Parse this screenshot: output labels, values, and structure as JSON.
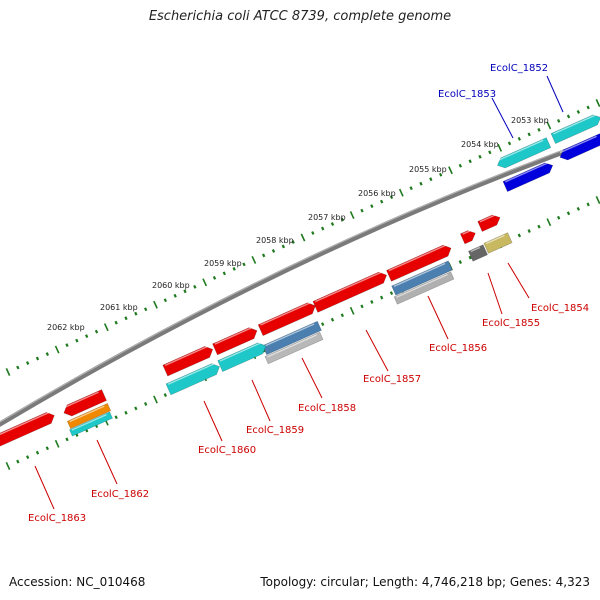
{
  "title": "Escherichia coli ATCC 8739, complete genome",
  "accession_text": "Accession: NC_010468",
  "info_text": "Topology: circular; Length: 4,746,218 bp; Genes: 4,323",
  "colors": {
    "backbone": "#7a7a7a",
    "tick": "#1f7a1f",
    "red_gene": "#e60000",
    "cyan_gene": "#1ec8c8",
    "blue_gene": "#0000dd",
    "steel_gene": "#4a7fb0",
    "grey_gene": "#666666",
    "khaki_gene": "#c8b860",
    "orange_gene": "#f08800",
    "label_red": "#cc0000",
    "label_blue": "#0000bb"
  },
  "kbp_ticks": [
    {
      "label": "2053 kbp"
    },
    {
      "label": "2054 kbp"
    },
    {
      "label": "2055 kbp"
    },
    {
      "label": "2056 kbp"
    },
    {
      "label": "2057 kbp"
    },
    {
      "label": "2058 kbp"
    },
    {
      "label": "2059 kbp"
    },
    {
      "label": "2060 kbp"
    },
    {
      "label": "2061 kbp"
    },
    {
      "label": "2062 kbp"
    }
  ],
  "gene_labels": [
    {
      "label": "EcolC_1852",
      "color": "blue"
    },
    {
      "label": "EcolC_1853",
      "color": "blue"
    },
    {
      "label": "EcolC_1854",
      "color": "red"
    },
    {
      "label": "EcolC_1855",
      "color": "red"
    },
    {
      "label": "EcolC_1856",
      "color": "red"
    },
    {
      "label": "EcolC_1857",
      "color": "red"
    },
    {
      "label": "EcolC_1858",
      "color": "red"
    },
    {
      "label": "EcolC_1859",
      "color": "red"
    },
    {
      "label": "EcolC_1860",
      "color": "red"
    },
    {
      "label": "EcolC_1862",
      "color": "red"
    },
    {
      "label": "EcolC_1863",
      "color": "red"
    }
  ]
}
